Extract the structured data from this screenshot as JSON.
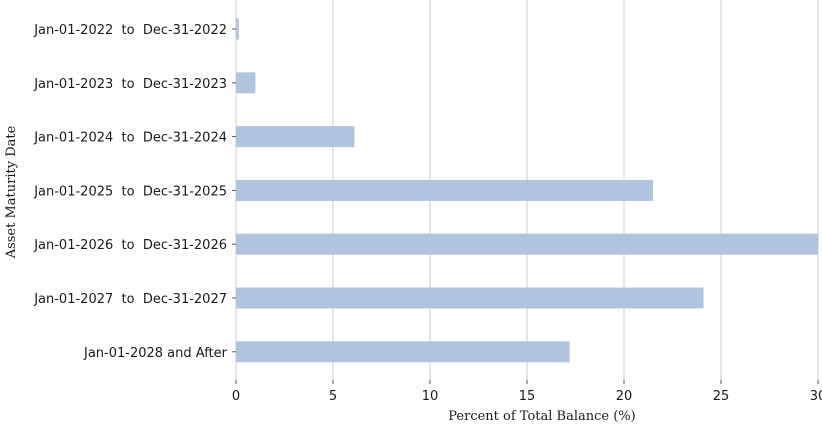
{
  "chart_data": {
    "type": "bar",
    "orientation": "horizontal",
    "categories": [
      "Jan-01-2022  to  Dec-31-2022",
      "Jan-01-2023  to  Dec-31-2023",
      "Jan-01-2024  to  Dec-31-2024",
      "Jan-01-2025  to  Dec-31-2025",
      "Jan-01-2026  to  Dec-31-2026",
      "Jan-01-2027  to  Dec-31-2027",
      "Jan-01-2028 and After"
    ],
    "values": [
      0.15,
      1.0,
      6.1,
      21.5,
      30.0,
      24.1,
      17.2
    ],
    "xlabel": "Percent of Total Balance (%)",
    "ylabel": "Asset Maturity Date",
    "xlim": [
      0,
      30
    ],
    "xticks": [
      0,
      5,
      10,
      15,
      20,
      25,
      30
    ],
    "grid": "vertical",
    "bar_color": "#b0c4de"
  }
}
